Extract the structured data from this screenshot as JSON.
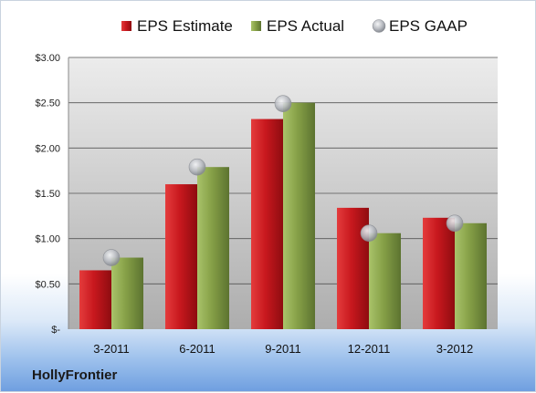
{
  "company": "HollyFrontier",
  "colors": {
    "estimate": "#c8181e",
    "actual": "#86a047",
    "gaap": "#b9bcc2",
    "plot_bg_top": "#e6e6e6",
    "plot_bg_bottom": "#b3b3b3",
    "gridline": "#555555"
  },
  "chart_data": {
    "type": "bar",
    "categories": [
      "3-2011",
      "6-2011",
      "9-2011",
      "12-2011",
      "3-2012"
    ],
    "series": [
      {
        "name": "EPS Estimate",
        "kind": "bar",
        "values": [
          0.65,
          1.6,
          2.32,
          1.34,
          1.23
        ]
      },
      {
        "name": "EPS Actual",
        "kind": "bar",
        "values": [
          0.79,
          1.79,
          2.5,
          1.06,
          1.17
        ]
      },
      {
        "name": "EPS GAAP",
        "kind": "marker",
        "values": [
          0.79,
          1.79,
          2.49,
          1.06,
          1.17
        ]
      }
    ],
    "ylim": [
      0,
      3.0
    ],
    "yticks": [
      0,
      0.5,
      1.0,
      1.5,
      2.0,
      2.5,
      3.0
    ],
    "ytick_labels": [
      "$-",
      "$0.50",
      "$1.00",
      "$1.50",
      "$2.00",
      "$2.50",
      "$3.00"
    ],
    "grid": true,
    "legend_position": "top"
  }
}
